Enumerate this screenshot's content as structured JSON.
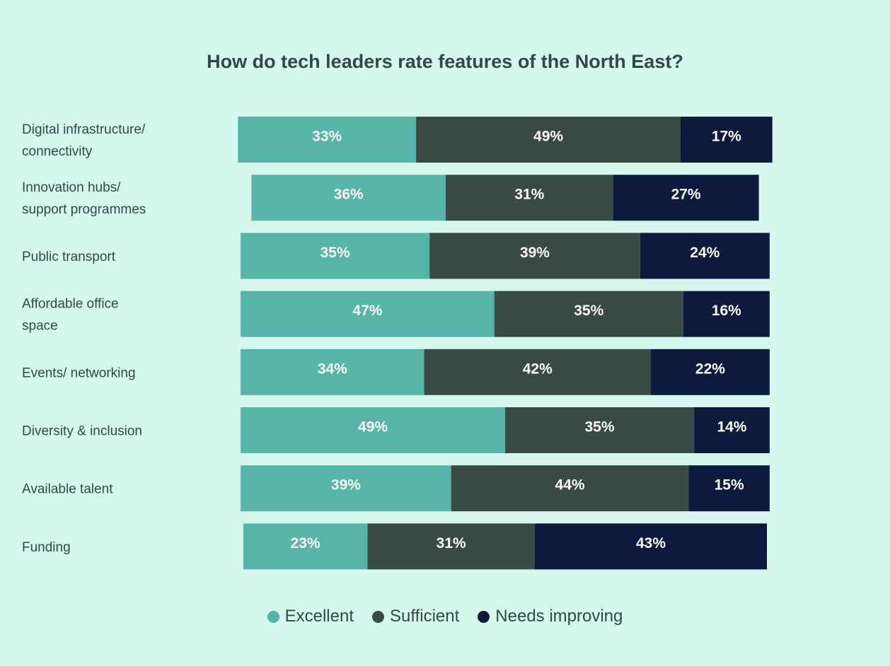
{
  "chart_data": {
    "type": "bar",
    "orientation": "horizontal",
    "stacked": true,
    "title": "How do tech leaders rate features of the North East?",
    "categories": [
      [
        "Digital infrastructure/",
        "connectivity"
      ],
      [
        "Innovation hubs/",
        "support programmes"
      ],
      [
        "Public transport"
      ],
      [
        "Affordable office",
        "space"
      ],
      [
        "Events/ networking"
      ],
      [
        "Diversity & inclusion"
      ],
      [
        "Available talent"
      ],
      [
        "Funding"
      ]
    ],
    "series": [
      {
        "name": "Excellent",
        "color": "#57b4a8",
        "values": [
          33,
          36,
          35,
          47,
          34,
          49,
          39,
          23
        ]
      },
      {
        "name": "Sufficient",
        "color": "#374a44",
        "values": [
          49,
          31,
          39,
          35,
          42,
          35,
          44,
          31
        ]
      },
      {
        "name": "Needs improving",
        "color": "#0c1b3d",
        "values": [
          17,
          27,
          24,
          16,
          22,
          14,
          15,
          43
        ]
      }
    ],
    "value_suffix": "%",
    "alignment": "diverging",
    "legend_position": "bottom",
    "grid": false
  }
}
